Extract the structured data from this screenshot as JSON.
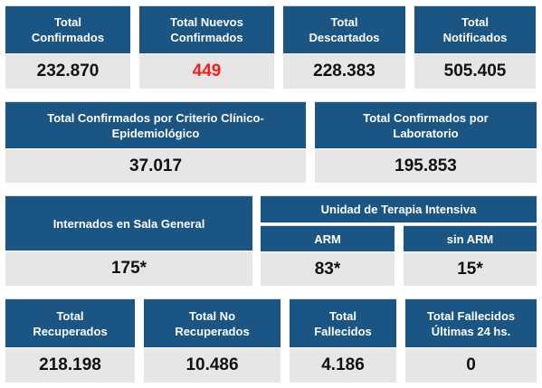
{
  "row1": [
    {
      "label": "Total\nConfirmados",
      "value": "232.870"
    },
    {
      "label": "Total Nuevos\nConfirmados",
      "value": "449"
    },
    {
      "label": "Total\nDescartados",
      "value": "228.383"
    },
    {
      "label": "Total\nNotificados",
      "value": "505.405"
    }
  ],
  "row2": [
    {
      "label": "Total Confirmados por Criterio Clínico-\nEpidemiológico",
      "value": "37.017"
    },
    {
      "label": "Total Confirmados por\nLaboratorio",
      "value": "195.853"
    }
  ],
  "row3": {
    "sala": {
      "label": "Internados en Sala General",
      "value": "175*"
    },
    "uti_title": "Unidad de Terapia Intensiva",
    "arm": {
      "label": "ARM",
      "value": "83*"
    },
    "sin_arm": {
      "label": "sin ARM",
      "value": "15*"
    }
  },
  "row4": [
    {
      "label": "Total\nRecuperados",
      "value": "218.198"
    },
    {
      "label": "Total No\nRecuperados",
      "value": "10.486"
    },
    {
      "label": "Total\nFallecidos",
      "value": "4.186"
    },
    {
      "label": "Total Fallecidos\nÚltimas 24 hs.",
      "value": "0"
    }
  ],
  "colors": {
    "header": "#1b5583",
    "value_bg": "#e6e6e6",
    "highlight": "#ff1a1a"
  }
}
